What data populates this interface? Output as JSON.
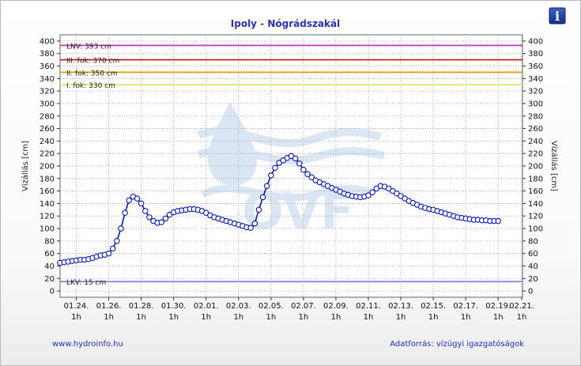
{
  "chart_data": {
    "type": "line",
    "title": "Ipoly - Nógrádszakál",
    "ylabel": "Vízállás [cm]",
    "ylabel_right": "Vízállás [cm]",
    "ylim": [
      -10,
      410
    ],
    "yticks": [
      0,
      20,
      40,
      60,
      80,
      100,
      120,
      140,
      160,
      180,
      200,
      220,
      240,
      260,
      280,
      300,
      320,
      340,
      360,
      380,
      400
    ],
    "xlim": [
      0,
      28.5
    ],
    "xticks": [
      {
        "x": 1,
        "label": "01.24.",
        "sub": "1h"
      },
      {
        "x": 3,
        "label": "01.26.",
        "sub": "1h"
      },
      {
        "x": 5,
        "label": "01.28.",
        "sub": "1h"
      },
      {
        "x": 7,
        "label": "01.30.",
        "sub": "1h"
      },
      {
        "x": 9,
        "label": "02.01.",
        "sub": "1h"
      },
      {
        "x": 11,
        "label": "02.03.",
        "sub": "1h"
      },
      {
        "x": 13,
        "label": "02.05.",
        "sub": "1h"
      },
      {
        "x": 15,
        "label": "02.07.",
        "sub": "1h"
      },
      {
        "x": 17,
        "label": "02.09.",
        "sub": "1h"
      },
      {
        "x": 19,
        "label": "02.11.",
        "sub": "1h"
      },
      {
        "x": 21,
        "label": "02.13.",
        "sub": "1h"
      },
      {
        "x": 23,
        "label": "02.15.",
        "sub": "1h"
      },
      {
        "x": 25,
        "label": "02.17.",
        "sub": "1h"
      },
      {
        "x": 27,
        "label": "02.19.",
        "sub": "1h"
      },
      {
        "x": 29,
        "label": "02.21.",
        "sub": "1h"
      }
    ],
    "reference_lines": [
      {
        "label": "LNV: 393 cm",
        "value": 393,
        "color": "#c040c0"
      },
      {
        "label": "III. fok: 370 cm",
        "value": 370,
        "color": "#d02020"
      },
      {
        "label": "II. fok: 350 cm",
        "value": 350,
        "color": "#e0a000"
      },
      {
        "label": "I. fok: 330 cm",
        "value": 330,
        "color": "#e8e060"
      },
      {
        "label": "LKV: 15 cm",
        "value": 15,
        "color": "#8080e0"
      }
    ],
    "series": [
      {
        "color": "#0018c0",
        "marker_color": "#0018c0",
        "points": [
          [
            0,
            45
          ],
          [
            0.25,
            46
          ],
          [
            0.5,
            47
          ],
          [
            0.75,
            48
          ],
          [
            1,
            49
          ],
          [
            1.25,
            50
          ],
          [
            1.5,
            50
          ],
          [
            1.75,
            51
          ],
          [
            2,
            53
          ],
          [
            2.25,
            55
          ],
          [
            2.5,
            57
          ],
          [
            2.75,
            58
          ],
          [
            3,
            60
          ],
          [
            3.25,
            68
          ],
          [
            3.5,
            80
          ],
          [
            3.75,
            100
          ],
          [
            4,
            125
          ],
          [
            4.25,
            145
          ],
          [
            4.5,
            151
          ],
          [
            4.75,
            148
          ],
          [
            5,
            140
          ],
          [
            5.25,
            128
          ],
          [
            5.5,
            118
          ],
          [
            5.75,
            112
          ],
          [
            6,
            109
          ],
          [
            6.25,
            110
          ],
          [
            6.5,
            116
          ],
          [
            6.75,
            122
          ],
          [
            7,
            126
          ],
          [
            7.25,
            128
          ],
          [
            7.5,
            129
          ],
          [
            7.75,
            130
          ],
          [
            8,
            131
          ],
          [
            8.25,
            131
          ],
          [
            8.5,
            130
          ],
          [
            8.75,
            128
          ],
          [
            9,
            125
          ],
          [
            9.25,
            121
          ],
          [
            9.5,
            118
          ],
          [
            9.75,
            116
          ],
          [
            10,
            114
          ],
          [
            10.25,
            112
          ],
          [
            10.5,
            110
          ],
          [
            10.75,
            108
          ],
          [
            11,
            106
          ],
          [
            11.25,
            104
          ],
          [
            11.5,
            102
          ],
          [
            11.75,
            101
          ],
          [
            12,
            108
          ],
          [
            12.25,
            130
          ],
          [
            12.5,
            150
          ],
          [
            12.75,
            168
          ],
          [
            13,
            185
          ],
          [
            13.25,
            197
          ],
          [
            13.5,
            205
          ],
          [
            13.75,
            209
          ],
          [
            14,
            213
          ],
          [
            14.25,
            216
          ],
          [
            14.5,
            212
          ],
          [
            14.75,
            204
          ],
          [
            15,
            194
          ],
          [
            15.25,
            187
          ],
          [
            15.5,
            182
          ],
          [
            15.75,
            177
          ],
          [
            16,
            174
          ],
          [
            16.25,
            171
          ],
          [
            16.5,
            168
          ],
          [
            16.75,
            165
          ],
          [
            17,
            162
          ],
          [
            17.25,
            159
          ],
          [
            17.5,
            156
          ],
          [
            17.75,
            154
          ],
          [
            18,
            152
          ],
          [
            18.25,
            151
          ],
          [
            18.5,
            150
          ],
          [
            18.75,
            151
          ],
          [
            19,
            153
          ],
          [
            19.25,
            158
          ],
          [
            19.5,
            164
          ],
          [
            19.75,
            168
          ],
          [
            20,
            167
          ],
          [
            20.25,
            164
          ],
          [
            20.5,
            160
          ],
          [
            20.75,
            156
          ],
          [
            21,
            152
          ],
          [
            21.25,
            148
          ],
          [
            21.5,
            144
          ],
          [
            21.75,
            141
          ],
          [
            22,
            138
          ],
          [
            22.25,
            135
          ],
          [
            22.5,
            133
          ],
          [
            22.75,
            131
          ],
          [
            23,
            130
          ],
          [
            23.25,
            128
          ],
          [
            23.5,
            126
          ],
          [
            23.75,
            124
          ],
          [
            24,
            122
          ],
          [
            24.25,
            120
          ],
          [
            24.5,
            118
          ],
          [
            24.75,
            117
          ],
          [
            25,
            116
          ],
          [
            25.25,
            115
          ],
          [
            25.5,
            114
          ],
          [
            25.75,
            114
          ],
          [
            26,
            113
          ],
          [
            26.25,
            113
          ],
          [
            26.5,
            112
          ],
          [
            26.75,
            112
          ],
          [
            27,
            112
          ]
        ]
      }
    ]
  },
  "watermark": {
    "text": "OVF"
  },
  "footer": {
    "left": "www.hydroinfo.hu",
    "right": "Adatforrás: vízügyi igazgatóságok"
  },
  "info_button": {
    "glyph": "i",
    "icon": "info-icon"
  }
}
